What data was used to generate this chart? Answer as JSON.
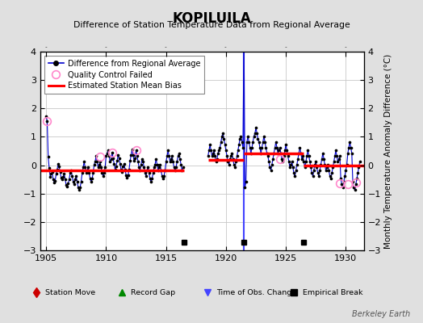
{
  "title": "KOPILUILA",
  "subtitle": "Difference of Station Temperature Data from Regional Average",
  "ylabel": "Monthly Temperature Anomaly Difference (°C)",
  "xlim": [
    1904.5,
    1931.5
  ],
  "ylim": [
    -3,
    4
  ],
  "yticks": [
    -3,
    -2,
    -1,
    0,
    1,
    2,
    3,
    4
  ],
  "xticks": [
    1905,
    1910,
    1915,
    1920,
    1925,
    1930
  ],
  "background_color": "#e0e0e0",
  "plot_bg_color": "#ffffff",
  "grid_color": "#c8c8c8",
  "line_color": "#0000cc",
  "bias_color": "#ff0000",
  "marker_color": "#000000",
  "qc_color": "#ff88cc",
  "time_obs_color": "#4444ff",
  "empirical_break_color": "#000000",
  "station_move_color": "#cc0000",
  "record_gap_color": "#008800",
  "watermark": "Berkeley Earth",
  "segments": [
    {
      "x_start": 1904.5,
      "x_end": 1916.5,
      "bias": -0.18
    },
    {
      "x_start": 1918.5,
      "x_end": 1921.5,
      "bias": 0.18
    },
    {
      "x_start": 1921.5,
      "x_end": 1926.5,
      "bias": 0.42
    },
    {
      "x_start": 1926.5,
      "x_end": 1931.5,
      "bias": -0.02
    }
  ],
  "time_obs_changes": [
    1921.5
  ],
  "empirical_breaks": [
    1916.5,
    1921.5,
    1926.5
  ],
  "qc_points": [
    [
      1905.08,
      1.55
    ],
    [
      1909.5,
      0.3
    ],
    [
      1910.5,
      0.45
    ],
    [
      1912.5,
      0.52
    ],
    [
      1924.5,
      0.22
    ],
    [
      1929.5,
      -0.65
    ],
    [
      1930.17,
      -0.68
    ],
    [
      1930.83,
      -0.62
    ]
  ],
  "data_x": [
    1905.0,
    1905.083,
    1905.167,
    1905.25,
    1905.333,
    1905.417,
    1905.5,
    1905.583,
    1905.667,
    1905.75,
    1905.833,
    1905.917,
    1906.0,
    1906.083,
    1906.167,
    1906.25,
    1906.333,
    1906.417,
    1906.5,
    1906.583,
    1906.667,
    1906.75,
    1906.833,
    1906.917,
    1907.0,
    1907.083,
    1907.167,
    1907.25,
    1907.333,
    1907.417,
    1907.5,
    1907.583,
    1907.667,
    1907.75,
    1907.833,
    1907.917,
    1908.0,
    1908.083,
    1908.167,
    1908.25,
    1908.333,
    1908.417,
    1908.5,
    1908.583,
    1908.667,
    1908.75,
    1908.833,
    1908.917,
    1909.0,
    1909.083,
    1909.167,
    1909.25,
    1909.333,
    1909.417,
    1909.5,
    1909.583,
    1909.667,
    1909.75,
    1909.833,
    1909.917,
    1910.0,
    1910.083,
    1910.167,
    1910.25,
    1910.333,
    1910.417,
    1910.5,
    1910.583,
    1910.667,
    1910.75,
    1910.833,
    1910.917,
    1911.0,
    1911.083,
    1911.167,
    1911.25,
    1911.333,
    1911.417,
    1911.5,
    1911.583,
    1911.667,
    1911.75,
    1911.833,
    1911.917,
    1912.0,
    1912.083,
    1912.167,
    1912.25,
    1912.333,
    1912.417,
    1912.5,
    1912.583,
    1912.667,
    1912.75,
    1912.833,
    1912.917,
    1913.0,
    1913.083,
    1913.167,
    1913.25,
    1913.333,
    1913.417,
    1913.5,
    1913.583,
    1913.667,
    1913.75,
    1913.833,
    1913.917,
    1914.0,
    1914.083,
    1914.167,
    1914.25,
    1914.333,
    1914.417,
    1914.5,
    1914.583,
    1914.667,
    1914.75,
    1914.833,
    1914.917,
    1915.0,
    1915.083,
    1915.167,
    1915.25,
    1915.333,
    1915.417,
    1915.5,
    1915.583,
    1915.667,
    1915.75,
    1915.833,
    1915.917,
    1916.0,
    1916.083,
    1916.167,
    1916.25,
    1916.333,
    1916.417,
    1918.5,
    1918.583,
    1918.667,
    1918.75,
    1918.833,
    1918.917,
    1919.0,
    1919.083,
    1919.167,
    1919.25,
    1919.333,
    1919.417,
    1919.5,
    1919.583,
    1919.667,
    1919.75,
    1919.833,
    1919.917,
    1920.0,
    1920.083,
    1920.167,
    1920.25,
    1920.333,
    1920.417,
    1920.5,
    1920.583,
    1920.667,
    1920.75,
    1920.833,
    1920.917,
    1921.0,
    1921.083,
    1921.167,
    1921.25,
    1921.333,
    1921.417,
    1921.5,
    1921.583,
    1921.667,
    1921.75,
    1921.833,
    1921.917,
    1922.0,
    1922.083,
    1922.167,
    1922.25,
    1922.333,
    1922.417,
    1922.5,
    1922.583,
    1922.667,
    1922.75,
    1922.833,
    1922.917,
    1923.0,
    1923.083,
    1923.167,
    1923.25,
    1923.333,
    1923.417,
    1923.5,
    1923.583,
    1923.667,
    1923.75,
    1923.833,
    1923.917,
    1924.0,
    1924.083,
    1924.167,
    1924.25,
    1924.333,
    1924.417,
    1924.5,
    1924.583,
    1924.667,
    1924.75,
    1924.833,
    1924.917,
    1925.0,
    1925.083,
    1925.167,
    1925.25,
    1925.333,
    1925.417,
    1925.5,
    1925.583,
    1925.667,
    1925.75,
    1925.833,
    1925.917,
    1926.0,
    1926.083,
    1926.167,
    1926.25,
    1926.333,
    1926.417,
    1926.5,
    1926.583,
    1926.667,
    1926.75,
    1926.833,
    1926.917,
    1927.0,
    1927.083,
    1927.167,
    1927.25,
    1927.333,
    1927.417,
    1927.5,
    1927.583,
    1927.667,
    1927.75,
    1927.833,
    1927.917,
    1928.0,
    1928.083,
    1928.167,
    1928.25,
    1928.333,
    1928.417,
    1928.5,
    1928.583,
    1928.667,
    1928.75,
    1928.833,
    1928.917,
    1929.0,
    1929.083,
    1929.167,
    1929.25,
    1929.333,
    1929.417,
    1929.5,
    1929.583,
    1929.667,
    1929.75,
    1929.833,
    1929.917,
    1930.0,
    1930.083,
    1930.167,
    1930.25,
    1930.333,
    1930.417,
    1930.5,
    1930.583,
    1930.667,
    1930.75,
    1930.833,
    1930.917,
    1931.0,
    1931.083,
    1931.167
  ],
  "data_y": [
    1.72,
    1.55,
    0.3,
    -0.1,
    -0.4,
    -0.3,
    -0.25,
    -0.5,
    -0.6,
    -0.55,
    -0.3,
    -0.15,
    0.05,
    -0.05,
    -0.25,
    -0.45,
    -0.5,
    -0.4,
    -0.3,
    -0.5,
    -0.7,
    -0.75,
    -0.65,
    -0.5,
    -0.28,
    -0.18,
    -0.38,
    -0.58,
    -0.68,
    -0.5,
    -0.38,
    -0.58,
    -0.78,
    -0.88,
    -0.78,
    -0.58,
    -0.28,
    -0.08,
    0.12,
    -0.08,
    -0.28,
    -0.18,
    -0.08,
    -0.28,
    -0.48,
    -0.58,
    -0.48,
    -0.28,
    0.02,
    0.12,
    0.32,
    0.12,
    -0.08,
    0.02,
    0.12,
    -0.08,
    -0.28,
    -0.38,
    -0.28,
    -0.08,
    0.32,
    0.42,
    0.52,
    0.32,
    0.12,
    0.22,
    0.45,
    0.25,
    0.05,
    -0.15,
    -0.05,
    0.15,
    0.35,
    0.25,
    0.05,
    -0.15,
    -0.25,
    -0.05,
    0.05,
    -0.15,
    -0.35,
    -0.45,
    -0.35,
    -0.15,
    0.15,
    0.35,
    0.55,
    0.35,
    0.15,
    0.25,
    0.52,
    0.32,
    0.12,
    -0.08,
    -0.18,
    0.02,
    0.22,
    0.12,
    -0.08,
    -0.28,
    -0.38,
    -0.18,
    -0.08,
    -0.28,
    -0.48,
    -0.58,
    -0.48,
    -0.28,
    -0.08,
    0.02,
    0.22,
    0.02,
    -0.18,
    -0.08,
    0.02,
    -0.18,
    -0.38,
    -0.48,
    -0.38,
    -0.18,
    0.12,
    0.32,
    0.52,
    0.32,
    0.12,
    0.22,
    0.32,
    0.12,
    -0.08,
    -0.18,
    -0.08,
    0.12,
    0.32,
    0.42,
    0.22,
    0.02,
    -0.18,
    -0.08,
    0.32,
    0.52,
    0.72,
    0.52,
    0.32,
    0.42,
    0.52,
    0.32,
    0.12,
    0.22,
    0.42,
    0.52,
    0.62,
    0.82,
    1.02,
    1.12,
    0.92,
    0.72,
    0.52,
    0.32,
    0.12,
    0.02,
    0.22,
    0.32,
    0.42,
    0.22,
    0.02,
    -0.08,
    0.12,
    0.32,
    0.52,
    0.72,
    0.92,
    1.02,
    0.82,
    0.62,
    4.5,
    -0.78,
    -0.58,
    0.82,
    1.02,
    0.82,
    0.62,
    0.42,
    0.62,
    0.82,
    1.02,
    1.12,
    1.32,
    1.12,
    0.92,
    0.82,
    0.62,
    0.42,
    0.62,
    0.82,
    1.02,
    0.82,
    0.62,
    0.42,
    0.32,
    0.12,
    -0.08,
    -0.18,
    0.02,
    0.22,
    0.42,
    0.62,
    0.82,
    0.62,
    0.42,
    0.52,
    0.62,
    0.42,
    0.22,
    0.12,
    0.32,
    0.52,
    0.72,
    0.52,
    0.32,
    0.12,
    -0.08,
    0.02,
    0.12,
    -0.08,
    -0.28,
    -0.38,
    -0.18,
    0.02,
    0.22,
    0.42,
    0.62,
    0.42,
    0.22,
    0.32,
    0.12,
    -0.08,
    0.12,
    0.32,
    0.52,
    0.32,
    0.12,
    -0.08,
    -0.28,
    -0.38,
    -0.18,
    0.02,
    0.12,
    -0.08,
    -0.28,
    -0.38,
    -0.18,
    0.02,
    0.22,
    0.42,
    0.22,
    0.02,
    -0.18,
    -0.08,
    0.02,
    -0.18,
    -0.38,
    -0.48,
    -0.28,
    -0.08,
    0.12,
    0.32,
    0.52,
    0.32,
    0.12,
    0.22,
    0.32,
    -0.48,
    -0.68,
    -0.78,
    -0.58,
    -0.38,
    -0.18,
    0.02,
    0.42,
    0.62,
    0.82,
    0.62,
    0.42,
    -0.58,
    -0.78,
    -0.88,
    -0.68,
    -0.48,
    -0.28,
    -0.08,
    0.12
  ]
}
